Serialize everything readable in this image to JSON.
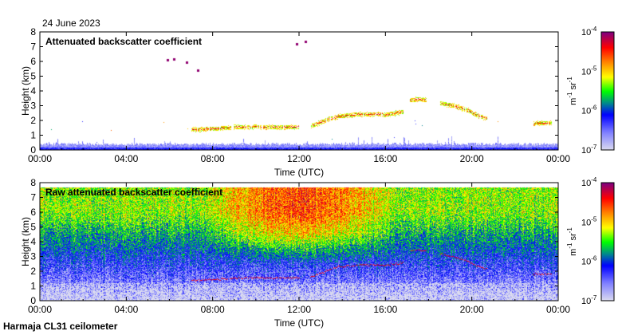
{
  "header": {
    "date": "24 June 2023"
  },
  "footer": {
    "station": "Harmaja CL31 ceilometer"
  },
  "chart_data": [
    {
      "type": "heatmap",
      "title": "Attenuated backscatter coefficient",
      "xlabel": "Time (UTC)",
      "ylabel": "Height (km)",
      "xlim": [
        0,
        24
      ],
      "ylim": [
        0,
        8
      ],
      "x_ticks": [
        "00:00",
        "04:00",
        "08:00",
        "12:00",
        "16:00",
        "20:00",
        "00:00"
      ],
      "y_ticks": [
        "0",
        "1",
        "2",
        "3",
        "4",
        "5",
        "6",
        "7",
        "8"
      ],
      "colorbar": {
        "label": "m-1 sr-1",
        "scale": "log",
        "range": [
          1e-07,
          0.0001
        ],
        "ticks": [
          "10-7",
          "10-6",
          "10-5",
          "10-4"
        ]
      },
      "surface_layer_top_km": 0.4,
      "cloud_layers": [
        {
          "name": "layer-morning",
          "points": [
            [
              7.0,
              1.4
            ],
            [
              8.0,
              1.45
            ],
            [
              9.0,
              1.55
            ],
            [
              10.0,
              1.6
            ],
            [
              11.0,
              1.55
            ],
            [
              12.0,
              1.55
            ]
          ]
        },
        {
          "name": "layer-midday",
          "points": [
            [
              12.5,
              1.6
            ],
            [
              13.0,
              1.9
            ],
            [
              13.8,
              2.3
            ],
            [
              14.5,
              2.4
            ],
            [
              15.2,
              2.45
            ],
            [
              16.0,
              2.4
            ],
            [
              16.8,
              2.6
            ]
          ]
        },
        {
          "name": "layer-afternoon",
          "points": [
            [
              17.1,
              3.4
            ],
            [
              17.5,
              3.45
            ],
            [
              17.9,
              3.4
            ]
          ]
        },
        {
          "name": "layer-evening",
          "points": [
            [
              18.5,
              3.2
            ],
            [
              19.2,
              3.0
            ],
            [
              19.8,
              2.7
            ],
            [
              20.2,
              2.4
            ],
            [
              20.7,
              2.15
            ]
          ]
        },
        {
          "name": "layer-late",
          "points": [
            [
              22.8,
              1.8
            ],
            [
              23.3,
              1.85
            ],
            [
              23.7,
              1.85
            ]
          ]
        }
      ],
      "isolated_returns": [
        [
          5.9,
          6.1
        ],
        [
          6.2,
          6.15
        ],
        [
          6.8,
          5.95
        ],
        [
          7.3,
          5.4
        ],
        [
          11.9,
          7.2
        ],
        [
          12.3,
          7.35
        ]
      ]
    },
    {
      "type": "heatmap",
      "title": "Raw attenuated backscatter coefficient",
      "xlabel": "Time (UTC)",
      "ylabel": "Height (km)",
      "xlim": [
        0,
        24
      ],
      "ylim": [
        0,
        8
      ],
      "data_top_km": 7.7,
      "x_ticks": [
        "00:00",
        "04:00",
        "08:00",
        "12:00",
        "16:00",
        "20:00",
        "00:00"
      ],
      "y_ticks": [
        "0",
        "1",
        "2",
        "3",
        "4",
        "5",
        "6",
        "7",
        "8"
      ],
      "colorbar": {
        "label": "m-1 sr-1",
        "scale": "log",
        "range": [
          1e-07,
          0.0001
        ],
        "ticks": [
          "10-7",
          "10-6",
          "10-5",
          "10-4"
        ]
      }
    }
  ],
  "colors": [
    "#dcdcf0",
    "#8080ff",
    "#0000ff",
    "#008b8b",
    "#00ff00",
    "#ffff00",
    "#ff8000",
    "#ff0000",
    "#800080"
  ]
}
